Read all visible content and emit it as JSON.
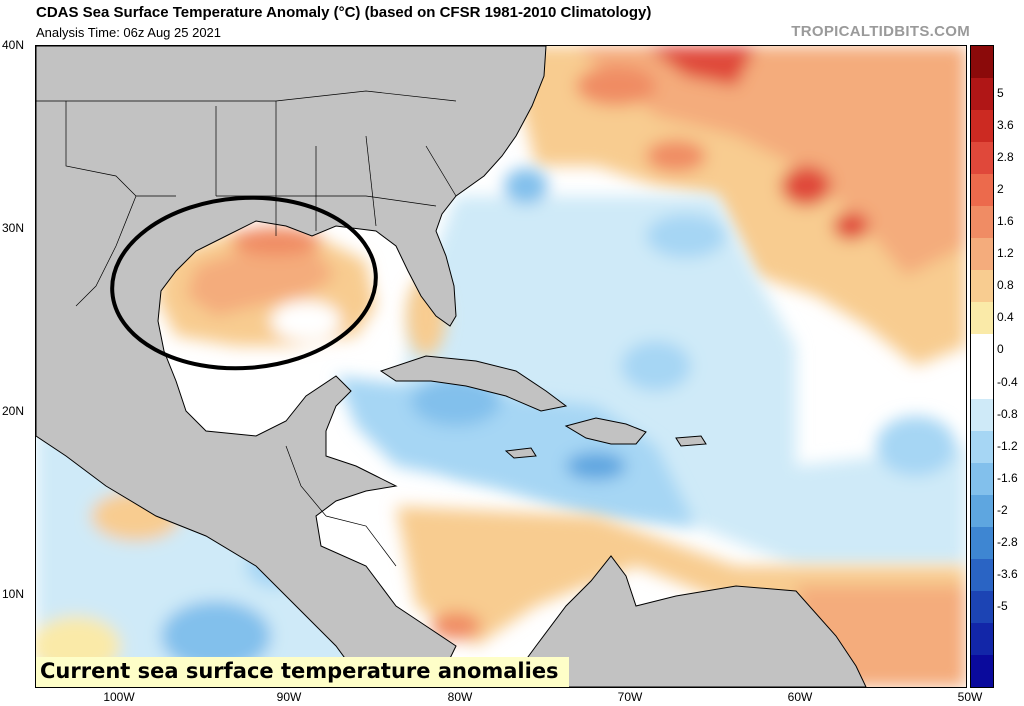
{
  "header": {
    "title": "CDAS Sea Surface Temperature Anomaly (°C) (based on CFSR 1981-2010 Climatology)",
    "analysis_time": "Analysis Time: 06z Aug 25 2021",
    "brand": "TROPICALTIDBITS.COM"
  },
  "map": {
    "caption": "Current sea surface temperature anomalies",
    "lat_labels": [
      "40N",
      "30N",
      "20N",
      "10N"
    ],
    "lon_labels": [
      "100W",
      "90W",
      "80W",
      "70W",
      "60W",
      "50W"
    ],
    "highlight": "Gulf of Mexico circled"
  },
  "colorbar": {
    "labels": [
      "5",
      "3.6",
      "2.8",
      "2",
      "1.6",
      "1.2",
      "0.8",
      "0.4",
      "0",
      "-0.4",
      "-0.8",
      "-1.2",
      "-1.6",
      "-2",
      "-2.8",
      "-3.6",
      "-5"
    ],
    "colors": [
      "#8b0a0a",
      "#b01616",
      "#cc2a22",
      "#e0483a",
      "#ec6a4c",
      "#f08c64",
      "#f4ac7c",
      "#f8cc90",
      "#faeaa8",
      "#ffffff",
      "#ffffff",
      "#cfeaf8",
      "#a6d6f4",
      "#82c0ec",
      "#5ea6e0",
      "#3e86d2",
      "#2a64c4",
      "#1c44b4",
      "#1226a8",
      "#0a0a9c"
    ]
  },
  "colors": {
    "land": "#c2c2c2",
    "warm": "#f8c686",
    "hot": "#ee8a64",
    "cool": "#b8ddf4",
    "cold": "#6fa8e0"
  }
}
